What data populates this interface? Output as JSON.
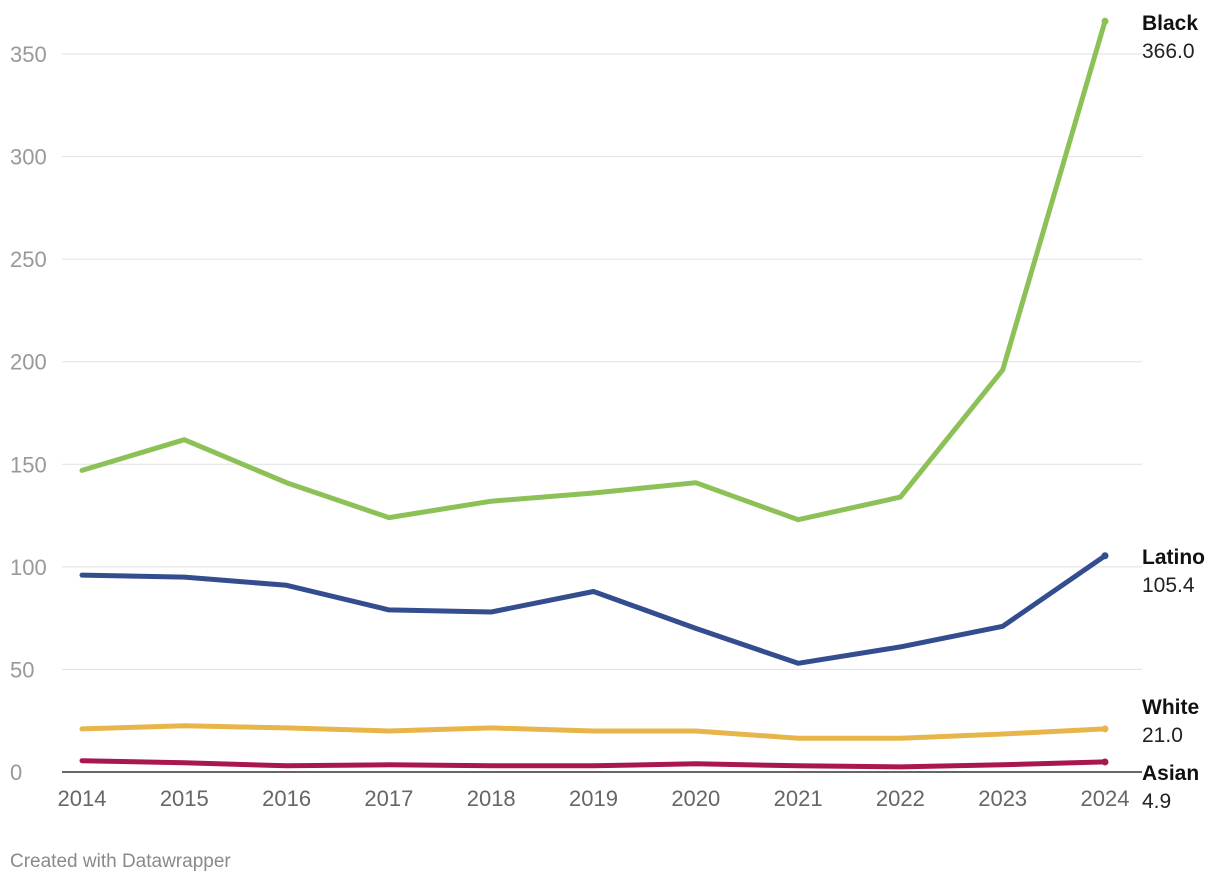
{
  "credit": "Created with Datawrapper",
  "chart_data": {
    "type": "line",
    "title": "",
    "xlabel": "",
    "ylabel": "",
    "x": [
      2014,
      2015,
      2016,
      2017,
      2018,
      2019,
      2020,
      2021,
      2022,
      2023,
      2024
    ],
    "ylim": [
      0,
      370
    ],
    "yticks": [
      0,
      50,
      100,
      150,
      200,
      250,
      300,
      350
    ],
    "grid": true,
    "legend": "direct labels at line ends (right)",
    "series": [
      {
        "name": "Black",
        "color": "#8cc157",
        "end_label": "366.0",
        "values": [
          147,
          162,
          141,
          124,
          132,
          136,
          141,
          123,
          134,
          196,
          366.0
        ]
      },
      {
        "name": "Latino",
        "color": "#334d8f",
        "end_label": "105.4",
        "values": [
          96,
          95,
          91,
          79,
          78,
          88,
          70,
          53,
          61,
          71,
          105.4
        ]
      },
      {
        "name": "White",
        "color": "#e8b54a",
        "end_label": "21.0",
        "values": [
          21,
          22.5,
          21.5,
          20,
          21.5,
          20,
          20,
          16.5,
          16.5,
          18.5,
          21.0
        ]
      },
      {
        "name": "Asian",
        "color": "#a8174f",
        "end_label": "4.9",
        "values": [
          5.5,
          4.5,
          3,
          3.5,
          3,
          3,
          4,
          3,
          2.5,
          3.5,
          4.9
        ]
      }
    ]
  }
}
